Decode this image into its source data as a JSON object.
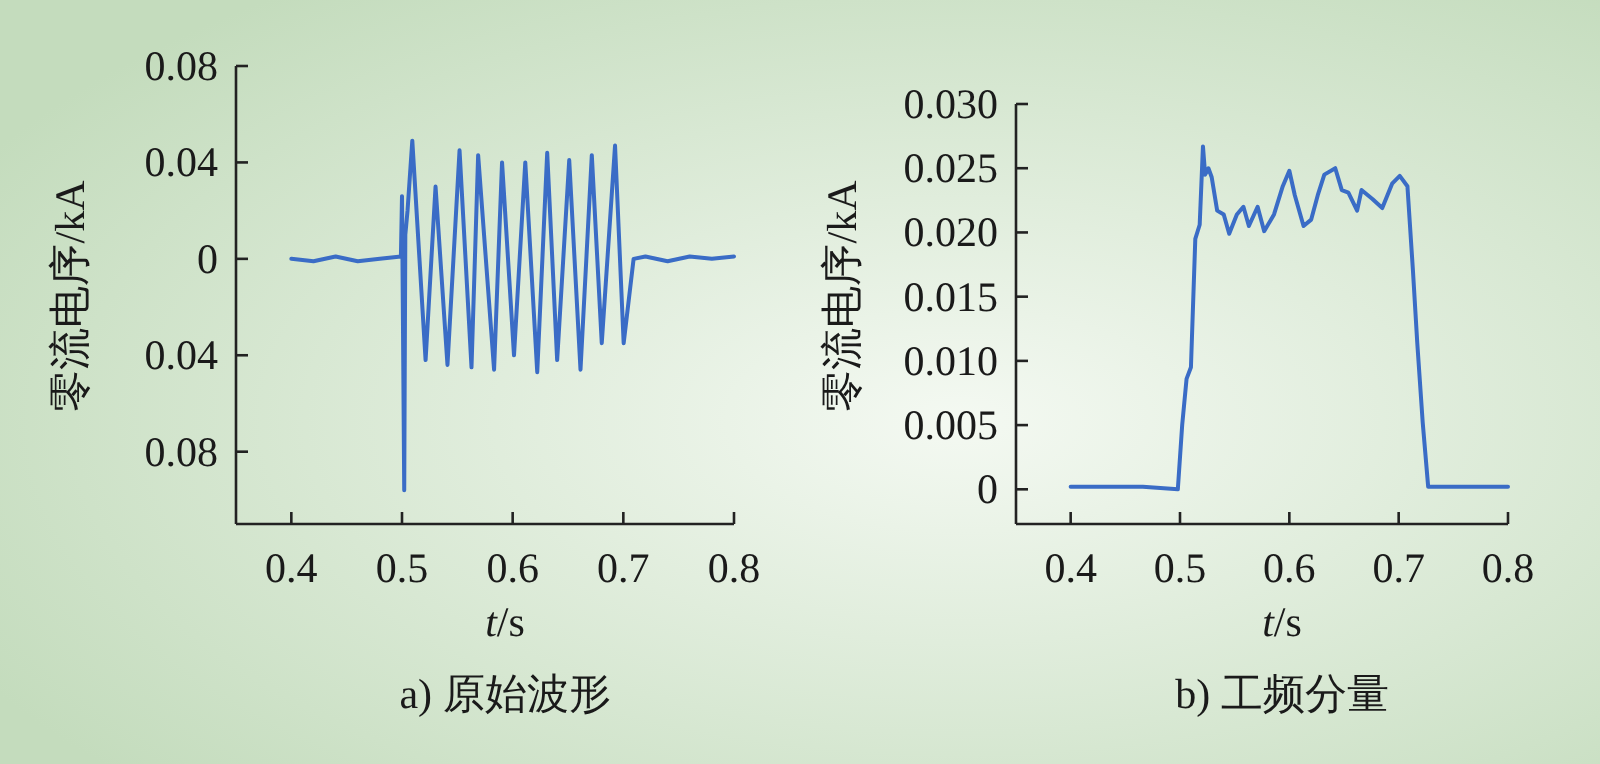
{
  "chart_data": [
    {
      "type": "line",
      "title": "a) 原始波形",
      "xlabel": "*t*/s",
      "ylabel": "零流电序/kA",
      "color": "#3a6cc6",
      "xlim": [
        0.35,
        0.8
      ],
      "xticks": [
        0.4,
        0.5,
        0.6,
        0.7,
        0.8
      ],
      "ylim": [
        -0.11,
        0.08
      ],
      "yticks": [
        0.08,
        0.04,
        0,
        {
          "value": -0.04,
          "label": "0.04"
        },
        {
          "value": -0.08,
          "label": "0.08"
        }
      ],
      "x": [
        0.4,
        0.42,
        0.44,
        0.46,
        0.48,
        0.499,
        0.5,
        0.502,
        0.503,
        0.505,
        0.5093,
        0.5213,
        0.5303,
        0.5411,
        0.552,
        0.5628,
        0.5688,
        0.5832,
        0.5904,
        0.6012,
        0.6114,
        0.6222,
        0.6312,
        0.6402,
        0.6511,
        0.6613,
        0.6715,
        0.6805,
        0.6925,
        0.7003,
        0.7093,
        0.72,
        0.74,
        0.76,
        0.78,
        0.8
      ],
      "values": [
        0.0,
        -0.001,
        0.001,
        -0.001,
        0.0,
        0.001,
        0.026,
        -0.096,
        0.01,
        0.02,
        0.049,
        -0.042,
        0.03,
        -0.044,
        0.045,
        -0.045,
        0.043,
        -0.046,
        0.04,
        -0.04,
        0.04,
        -0.047,
        0.044,
        -0.042,
        0.041,
        -0.046,
        0.043,
        -0.035,
        0.047,
        -0.035,
        0.0,
        0.001,
        -0.001,
        0.001,
        0.0,
        0.001
      ]
    },
    {
      "type": "line",
      "title": "b) 工频分量",
      "xlabel": "*t*/s",
      "ylabel": "零流电序/kA",
      "color": "#3a6cc6",
      "xlim": [
        0.35,
        0.8
      ],
      "xticks": [
        0.4,
        0.5,
        0.6,
        0.7,
        0.8
      ],
      "ylim": [
        -0.0027,
        0.03
      ],
      "yticks": [
        {
          "value": 0.03,
          "label": "0.030"
        },
        0.025,
        {
          "value": 0.02,
          "label": "0.020"
        },
        0.015,
        {
          "value": 0.01,
          "label": "0.010"
        },
        0.005,
        0
      ],
      "x": [
        0.4,
        0.429,
        0.466,
        0.498,
        0.502,
        0.506,
        0.51,
        0.514,
        0.518,
        0.521,
        0.523,
        0.526,
        0.529,
        0.534,
        0.54,
        0.545,
        0.552,
        0.558,
        0.563,
        0.571,
        0.577,
        0.586,
        0.594,
        0.6,
        0.605,
        0.613,
        0.62,
        0.626,
        0.632,
        0.642,
        0.648,
        0.654,
        0.662,
        0.666,
        0.676,
        0.685,
        0.694,
        0.701,
        0.708,
        0.713,
        0.717,
        0.722,
        0.727,
        0.762,
        0.8
      ],
      "values": [
        0.0002,
        0.0002,
        0.0002,
        0.0,
        0.005,
        0.0086,
        0.0095,
        0.0195,
        0.0206,
        0.0267,
        0.0245,
        0.025,
        0.0243,
        0.0217,
        0.0214,
        0.0199,
        0.0214,
        0.022,
        0.0205,
        0.022,
        0.0201,
        0.0214,
        0.0236,
        0.0248,
        0.0229,
        0.0205,
        0.021,
        0.0229,
        0.0245,
        0.025,
        0.0233,
        0.0231,
        0.0217,
        0.0233,
        0.0226,
        0.0219,
        0.0238,
        0.0244,
        0.0236,
        0.0171,
        0.0114,
        0.0052,
        0.0002,
        0.0002,
        0.0002
      ]
    }
  ]
}
